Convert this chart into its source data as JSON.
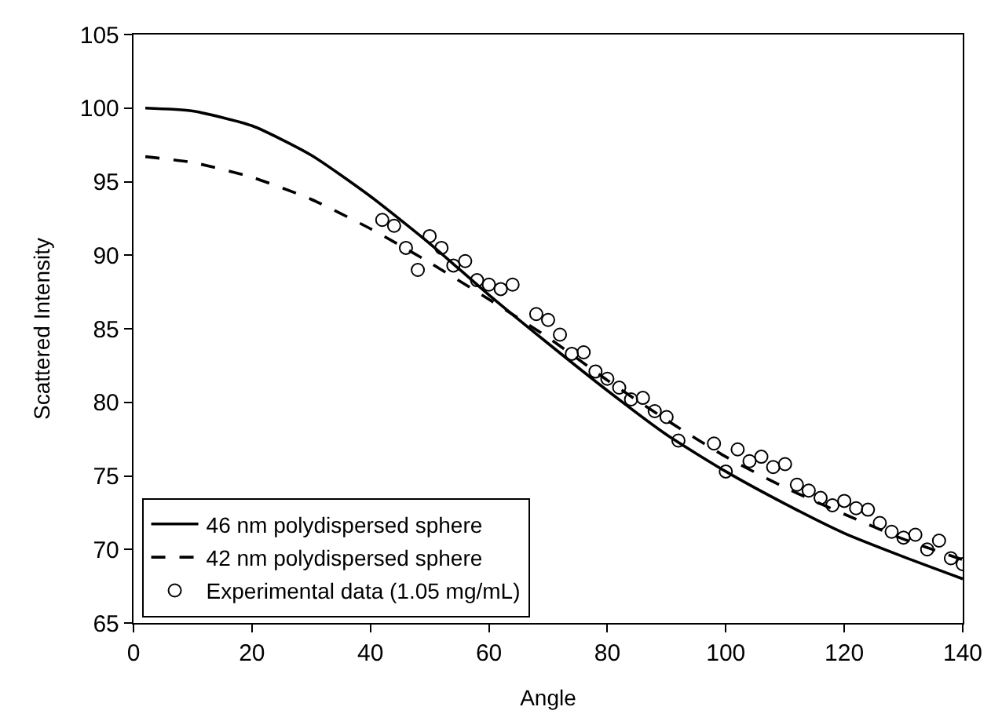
{
  "chart_data": {
    "type": "line",
    "xlabel": "Angle",
    "ylabel": "Scattered Intensity",
    "xlim": [
      0,
      140
    ],
    "xticks": [
      0,
      20,
      40,
      60,
      80,
      100,
      120,
      140
    ],
    "ylim": [
      65,
      105
    ],
    "yticks": [
      65,
      70,
      75,
      80,
      85,
      90,
      95,
      100,
      105
    ],
    "legend": "bottom left",
    "series": [
      {
        "name": "46 nm polydispersed sphere",
        "color": "#000000",
        "line_style": "solid",
        "marker": "none",
        "x": [
          2,
          10,
          20,
          30,
          40,
          50,
          60,
          70,
          80,
          90,
          100,
          110,
          120,
          130,
          140
        ],
        "values": [
          100,
          99.8,
          98.8,
          96.8,
          94,
          90.8,
          87.3,
          84,
          80.8,
          77.8,
          75.3,
          73.1,
          71.1,
          69.5,
          68
        ]
      },
      {
        "name": "42 nm polydispersed sphere",
        "color": "#000000",
        "line_style": "dashed",
        "marker": "none",
        "x": [
          2,
          10,
          20,
          30,
          40,
          50,
          60,
          70,
          80,
          90,
          100,
          110,
          120,
          130,
          140
        ],
        "values": [
          96.7,
          96.3,
          95.3,
          93.8,
          91.8,
          89.5,
          87,
          84.4,
          81.5,
          78.8,
          76.3,
          74.2,
          72.4,
          70.7,
          69.3
        ]
      },
      {
        "name": "Experimental data (1.05 mg/mL)",
        "type": "scatter",
        "color": "#000000",
        "marker": "circle",
        "x": [
          42,
          44,
          46,
          48,
          50,
          52,
          54,
          56,
          58,
          60,
          62,
          64,
          68,
          70,
          72,
          74,
          76,
          78,
          80,
          82,
          84,
          86,
          88,
          90,
          92,
          98,
          100,
          102,
          104,
          106,
          108,
          110,
          112,
          114,
          116,
          118,
          120,
          122,
          124,
          126,
          128,
          130,
          132,
          134,
          136,
          138,
          140
        ],
        "values": [
          92.4,
          92,
          90.5,
          89,
          91.3,
          90.5,
          89.3,
          89.6,
          88.3,
          88,
          87.7,
          88,
          86,
          85.6,
          84.6,
          83.3,
          83.4,
          82.1,
          81.6,
          81,
          80.2,
          80.3,
          79.4,
          79,
          77.4,
          77.2,
          75.3,
          76.8,
          76,
          76.3,
          75.6,
          75.8,
          74.4,
          74,
          73.5,
          73,
          73.3,
          72.8,
          72.7,
          71.8,
          71.2,
          70.8,
          71,
          70,
          70.6,
          69.4,
          69
        ]
      }
    ]
  }
}
